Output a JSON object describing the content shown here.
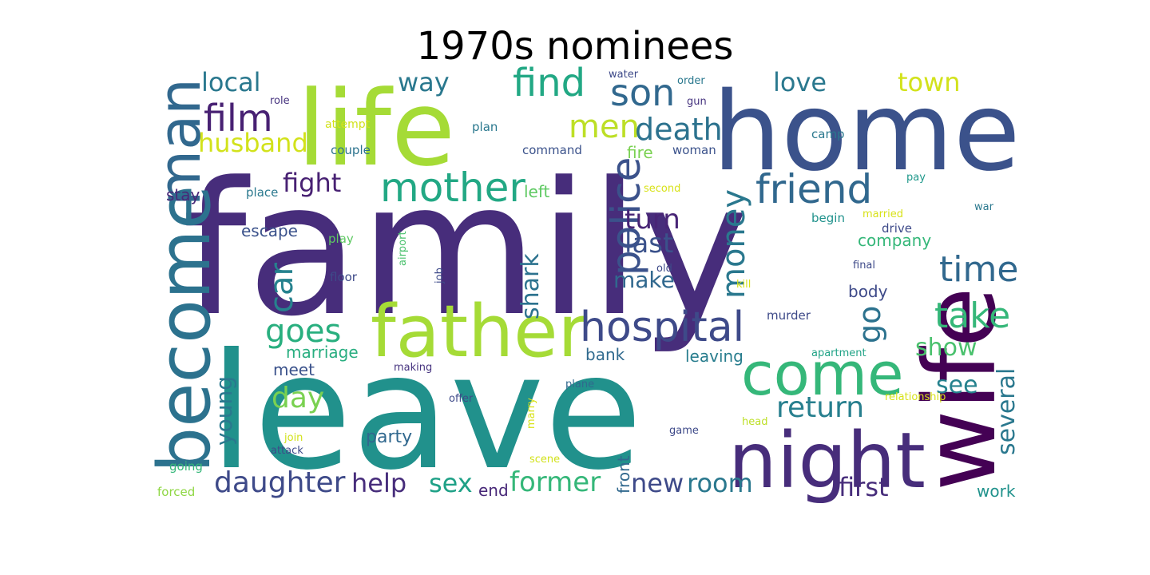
{
  "chart_data": {
    "type": "wordcloud",
    "title": "1970s nominees",
    "words": [
      {
        "text": "family",
        "weight": 100,
        "color": "#472d7b"
      },
      {
        "text": "leave",
        "weight": 92,
        "color": "#21918c"
      },
      {
        "text": "home",
        "weight": 70,
        "color": "#3b528b"
      },
      {
        "text": "life",
        "weight": 66,
        "color": "#a5db36"
      },
      {
        "text": "wife",
        "weight": 62,
        "color": "#440154"
      },
      {
        "text": "night",
        "weight": 48,
        "color": "#472d7b"
      },
      {
        "text": "become",
        "weight": 47,
        "color": "#2c728e"
      },
      {
        "text": "father",
        "weight": 45,
        "color": "#a5db36"
      },
      {
        "text": "man",
        "weight": 40,
        "color": "#31688e"
      },
      {
        "text": "come",
        "weight": 38,
        "color": "#35b779"
      },
      {
        "text": "hospital",
        "weight": 28,
        "color": "#3e4a89"
      },
      {
        "text": "police",
        "weight": 26,
        "color": "#3b528b"
      },
      {
        "text": "mother",
        "weight": 25,
        "color": "#22a884"
      },
      {
        "text": "friend",
        "weight": 25,
        "color": "#31688e"
      },
      {
        "text": "find",
        "weight": 24,
        "color": "#22a884"
      },
      {
        "text": "son",
        "weight": 23,
        "color": "#31688e"
      },
      {
        "text": "film",
        "weight": 22,
        "color": "#482173"
      },
      {
        "text": "take",
        "weight": 22,
        "color": "#35b779"
      },
      {
        "text": "time",
        "weight": 22,
        "color": "#31688e"
      },
      {
        "text": "money",
        "weight": 20,
        "color": "#2a788e"
      },
      {
        "text": "goes",
        "weight": 20,
        "color": "#29af7f"
      },
      {
        "text": "men",
        "weight": 19,
        "color": "#bddf26"
      },
      {
        "text": "death",
        "weight": 19,
        "color": "#2c728e"
      },
      {
        "text": "car",
        "weight": 19,
        "color": "#26828e"
      },
      {
        "text": "go",
        "weight": 19,
        "color": "#2c728e"
      },
      {
        "text": "return",
        "weight": 19,
        "color": "#277f8e"
      },
      {
        "text": "daughter",
        "weight": 18,
        "color": "#3e4a89"
      },
      {
        "text": "day",
        "weight": 18,
        "color": "#7ad151"
      },
      {
        "text": "former",
        "weight": 17,
        "color": "#35b779"
      },
      {
        "text": "turn",
        "weight": 17,
        "color": "#482576"
      },
      {
        "text": "last",
        "weight": 17,
        "color": "#3b528b"
      },
      {
        "text": "local",
        "weight": 16,
        "color": "#2a788e"
      },
      {
        "text": "husband",
        "weight": 16,
        "color": "#d2e21b"
      },
      {
        "text": "fight",
        "weight": 16,
        "color": "#482173"
      },
      {
        "text": "love",
        "weight": 16,
        "color": "#2a788e"
      },
      {
        "text": "town",
        "weight": 16,
        "color": "#d2e21b"
      },
      {
        "text": "way",
        "weight": 16,
        "color": "#2a788e"
      },
      {
        "text": "help",
        "weight": 16,
        "color": "#472d7b"
      },
      {
        "text": "sex",
        "weight": 16,
        "color": "#1fa187"
      },
      {
        "text": "room",
        "weight": 16,
        "color": "#2a788e"
      },
      {
        "text": "new",
        "weight": 16,
        "color": "#3e4a89"
      },
      {
        "text": "first",
        "weight": 16,
        "color": "#472d7b"
      },
      {
        "text": "shark",
        "weight": 15,
        "color": "#2c728e"
      },
      {
        "text": "show",
        "weight": 15,
        "color": "#4ac16d"
      },
      {
        "text": "see",
        "weight": 15,
        "color": "#26828e"
      },
      {
        "text": "several",
        "weight": 15,
        "color": "#2a788e"
      },
      {
        "text": "young",
        "weight": 15,
        "color": "#2a788e"
      },
      {
        "text": "make",
        "weight": 14,
        "color": "#31688e"
      },
      {
        "text": "party",
        "weight": 13,
        "color": "#31688e"
      },
      {
        "text": "marriage",
        "weight": 12,
        "color": "#28ae80"
      },
      {
        "text": "leaving",
        "weight": 12,
        "color": "#287d8e"
      },
      {
        "text": "meet",
        "weight": 12,
        "color": "#3b528b"
      },
      {
        "text": "escape",
        "weight": 12,
        "color": "#3b528b"
      },
      {
        "text": "company",
        "weight": 12,
        "color": "#35b779"
      },
      {
        "text": "body",
        "weight": 12,
        "color": "#3e4a89"
      },
      {
        "text": "bank",
        "weight": 12,
        "color": "#306a8e"
      },
      {
        "text": "front",
        "weight": 12,
        "color": "#31688e"
      },
      {
        "text": "work",
        "weight": 12,
        "color": "#20928c"
      },
      {
        "text": "fire",
        "weight": 11,
        "color": "#7ad151"
      },
      {
        "text": "stay",
        "weight": 11,
        "color": "#482878"
      },
      {
        "text": "left",
        "weight": 11,
        "color": "#5ec962"
      },
      {
        "text": "end",
        "weight": 11,
        "color": "#482878"
      },
      {
        "text": "play",
        "weight": 9,
        "color": "#5ec962"
      },
      {
        "text": "woman",
        "weight": 9,
        "color": "#3b528b"
      },
      {
        "text": "command",
        "weight": 9,
        "color": "#3b528b"
      },
      {
        "text": "couple",
        "weight": 9,
        "color": "#2c728e"
      },
      {
        "text": "place",
        "weight": 9,
        "color": "#2a788e"
      },
      {
        "text": "camp",
        "weight": 9,
        "color": "#2a788e"
      },
      {
        "text": "plan",
        "weight": 9,
        "color": "#2a788e"
      },
      {
        "text": "murder",
        "weight": 9,
        "color": "#3e4a89"
      },
      {
        "text": "floor",
        "weight": 9,
        "color": "#3e4a89"
      },
      {
        "text": "begin",
        "weight": 9,
        "color": "#20928c"
      },
      {
        "text": "drive",
        "weight": 9,
        "color": "#3e4a89"
      },
      {
        "text": "going",
        "weight": 9,
        "color": "#35b779"
      },
      {
        "text": "forced",
        "weight": 9,
        "color": "#8fd744"
      },
      {
        "text": "attempt",
        "weight": 9,
        "color": "#d2e21b"
      },
      {
        "text": "water",
        "weight": 8,
        "color": "#3e4a89"
      },
      {
        "text": "order",
        "weight": 8,
        "color": "#2a788e"
      },
      {
        "text": "role",
        "weight": 8,
        "color": "#46337f"
      },
      {
        "text": "gun",
        "weight": 8,
        "color": "#46337f"
      },
      {
        "text": "pay",
        "weight": 8,
        "color": "#1f988b"
      },
      {
        "text": "second",
        "weight": 8,
        "color": "#d8e219"
      },
      {
        "text": "war",
        "weight": 8,
        "color": "#2a788e"
      },
      {
        "text": "married",
        "weight": 8,
        "color": "#d8e219"
      },
      {
        "text": "final",
        "weight": 8,
        "color": "#3e4a89"
      },
      {
        "text": "old",
        "weight": 8,
        "color": "#3e4a89"
      },
      {
        "text": "kill",
        "weight": 8,
        "color": "#d8e219"
      },
      {
        "text": "apartment",
        "weight": 8,
        "color": "#20a386"
      },
      {
        "text": "making",
        "weight": 8,
        "color": "#46337f"
      },
      {
        "text": "plane",
        "weight": 8,
        "color": "#31688e"
      },
      {
        "text": "relationship",
        "weight": 8,
        "color": "#d8e219"
      },
      {
        "text": "offer",
        "weight": 8,
        "color": "#3e4a89"
      },
      {
        "text": "head",
        "weight": 8,
        "color": "#bddf26"
      },
      {
        "text": "game",
        "weight": 8,
        "color": "#3e4a89"
      },
      {
        "text": "join",
        "weight": 8,
        "color": "#d2e21b"
      },
      {
        "text": "attack",
        "weight": 8,
        "color": "#3e4a89"
      },
      {
        "text": "scene",
        "weight": 8,
        "color": "#d2e21b"
      },
      {
        "text": "airport",
        "weight": 7,
        "color": "#4ac16d"
      },
      {
        "text": "job",
        "weight": 7,
        "color": "#3e4a89"
      },
      {
        "text": "marry",
        "weight": 7,
        "color": "#d8e219"
      }
    ]
  }
}
